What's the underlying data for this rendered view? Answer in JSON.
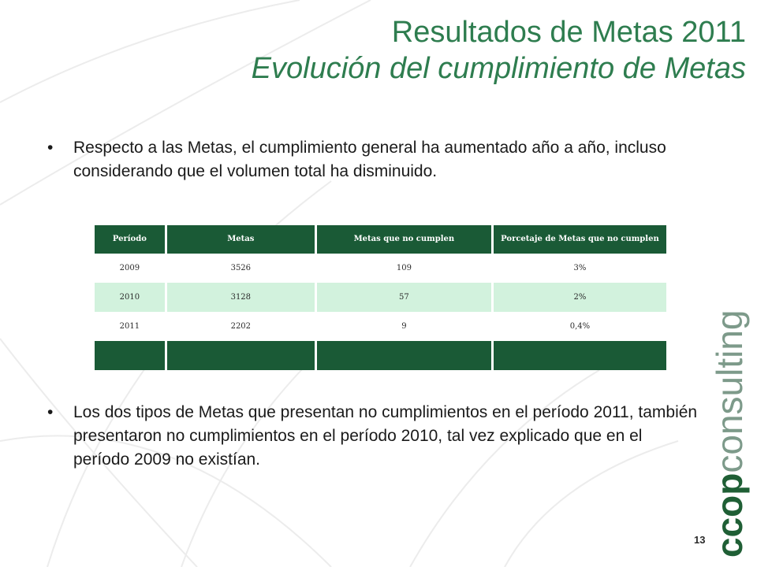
{
  "slide": {
    "title_line1": "Resultados de Metas 2011",
    "title_line2": "Evolución del cumplimiento de Metas",
    "bullet1": "Respecto a las Metas, el cumplimiento general ha aumentado año a año, incluso considerando que el volumen total ha disminuido.",
    "bullet2": "Los dos tipos de Metas que presentan no cumplimientos en el período 2011, también presentaron no cumplimientos en el período 2010, tal vez explicado que en el período 2009 no existían.",
    "bullet_symbol": "•",
    "page_number": "13"
  },
  "table": {
    "headers": [
      "Período",
      "Metas",
      "Metas que no cumplen",
      "Porcetaje de Metas que no cumplen"
    ],
    "rows": [
      [
        "2009",
        "3526",
        "109",
        "3%"
      ],
      [
        "2010",
        "3128",
        "57",
        "2%"
      ],
      [
        "2011",
        "2202",
        "9",
        "0,4%"
      ]
    ]
  },
  "logo": {
    "bold": "ccop",
    "light": "consulting"
  },
  "colors": {
    "title": "#2e7d4f",
    "table_header": "#1a5a36",
    "table_row_alt": "#d2f2dd",
    "logo_bold": "#1f5f35",
    "logo_light": "#7d9a8a"
  }
}
